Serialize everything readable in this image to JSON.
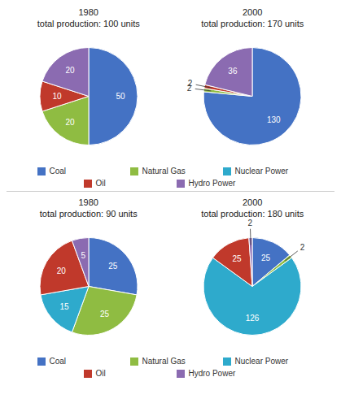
{
  "chart_data": [
    {
      "type": "pie",
      "title": "1980",
      "subtitle": "total production: 100 units",
      "categories": [
        "Coal",
        "Natural Gas",
        "Nuclear Power",
        "Oil",
        "Hydro Power"
      ],
      "values": [
        50,
        20,
        0,
        10,
        20
      ],
      "colors": [
        "#4472C4",
        "#8FBC42",
        "#2EAACC",
        "#C0392B",
        "#8B6BB1"
      ],
      "data_labels": true,
      "legend": "bottom"
    },
    {
      "type": "pie",
      "title": "2000",
      "subtitle": "total production: 170 units",
      "categories": [
        "Coal",
        "Natural Gas",
        "Nuclear Power",
        "Oil",
        "Hydro Power"
      ],
      "values": [
        130,
        2,
        0,
        2,
        36
      ],
      "colors": [
        "#4472C4",
        "#8FBC42",
        "#2EAACC",
        "#C0392B",
        "#8B6BB1"
      ],
      "data_labels": true
    },
    {
      "type": "pie",
      "title": "1980",
      "subtitle": "total production: 90 units",
      "categories": [
        "Coal",
        "Natural Gas",
        "Nuclear Power",
        "Oil",
        "Hydro Power"
      ],
      "values": [
        25,
        25,
        15,
        20,
        5
      ],
      "colors": [
        "#4472C4",
        "#8FBC42",
        "#2EAACC",
        "#C0392B",
        "#8B6BB1"
      ],
      "data_labels": true,
      "legend": "bottom"
    },
    {
      "type": "pie",
      "title": "2000",
      "subtitle": "total production: 180 units",
      "categories": [
        "Coal",
        "Natural Gas",
        "Nuclear Power",
        "Oil",
        "Hydro Power"
      ],
      "values": [
        25,
        2,
        126,
        25,
        2
      ],
      "colors": [
        "#4472C4",
        "#8FBC42",
        "#2EAACC",
        "#C0392B",
        "#8B6BB1"
      ],
      "data_labels": true
    }
  ]
}
